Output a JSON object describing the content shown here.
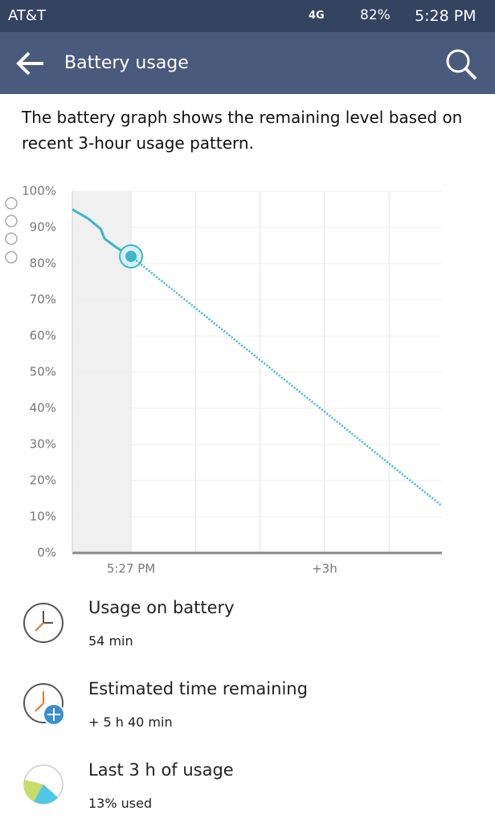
{
  "status_bar": {
    "carrier": "AT&T",
    "network": "4G",
    "battery": "82%",
    "time": "5:28 PM"
  },
  "app_bar": {
    "title": "Battery usage"
  },
  "description": "The battery graph shows the remaining level based on recent 3-hour usage pattern.",
  "chart_data": {
    "type": "line",
    "xlim": [
      -0.91,
      4.82
    ],
    "ylim": [
      0,
      100
    ],
    "xticks": [
      {
        "value": 0,
        "label": "5:27 PM"
      },
      {
        "value": 1,
        "label": null
      },
      {
        "value": 2,
        "label": null
      },
      {
        "value": 3,
        "label": "+3h"
      },
      {
        "value": 4,
        "label": null
      }
    ],
    "yticks": [
      {
        "value": 0,
        "label": "0%"
      },
      {
        "value": 10,
        "label": "10%"
      },
      {
        "value": 20,
        "label": "20%"
      },
      {
        "value": 30,
        "label": "30%"
      },
      {
        "value": 40,
        "label": "40%"
      },
      {
        "value": 50,
        "label": "50%"
      },
      {
        "value": 60,
        "label": "60%"
      },
      {
        "value": 70,
        "label": "70%"
      },
      {
        "value": 80,
        "label": "80%"
      },
      {
        "value": 90,
        "label": "90%"
      },
      {
        "value": 100,
        "label": "100%"
      }
    ],
    "grid": true,
    "series": [
      {
        "color": "#3cb6c8",
        "line_style": "solid",
        "x": [
          -0.91,
          -0.66,
          -0.47,
          -0.41,
          -0.22,
          0
        ],
        "values": [
          95,
          92.4,
          89.6,
          86.9,
          84.4,
          82
        ]
      },
      {
        "color": "#3cb6c8",
        "line_style": "dotted",
        "x": [
          0,
          4.82
        ],
        "values": [
          82,
          13
        ]
      }
    ]
  },
  "items": [
    {
      "title": "Usage on battery",
      "detail": "54 min"
    },
    {
      "title": "Estimated time remaining",
      "detail": "+ 5 h 40 min"
    },
    {
      "title": "Last 3 h of usage",
      "detail": "13% used"
    }
  ]
}
